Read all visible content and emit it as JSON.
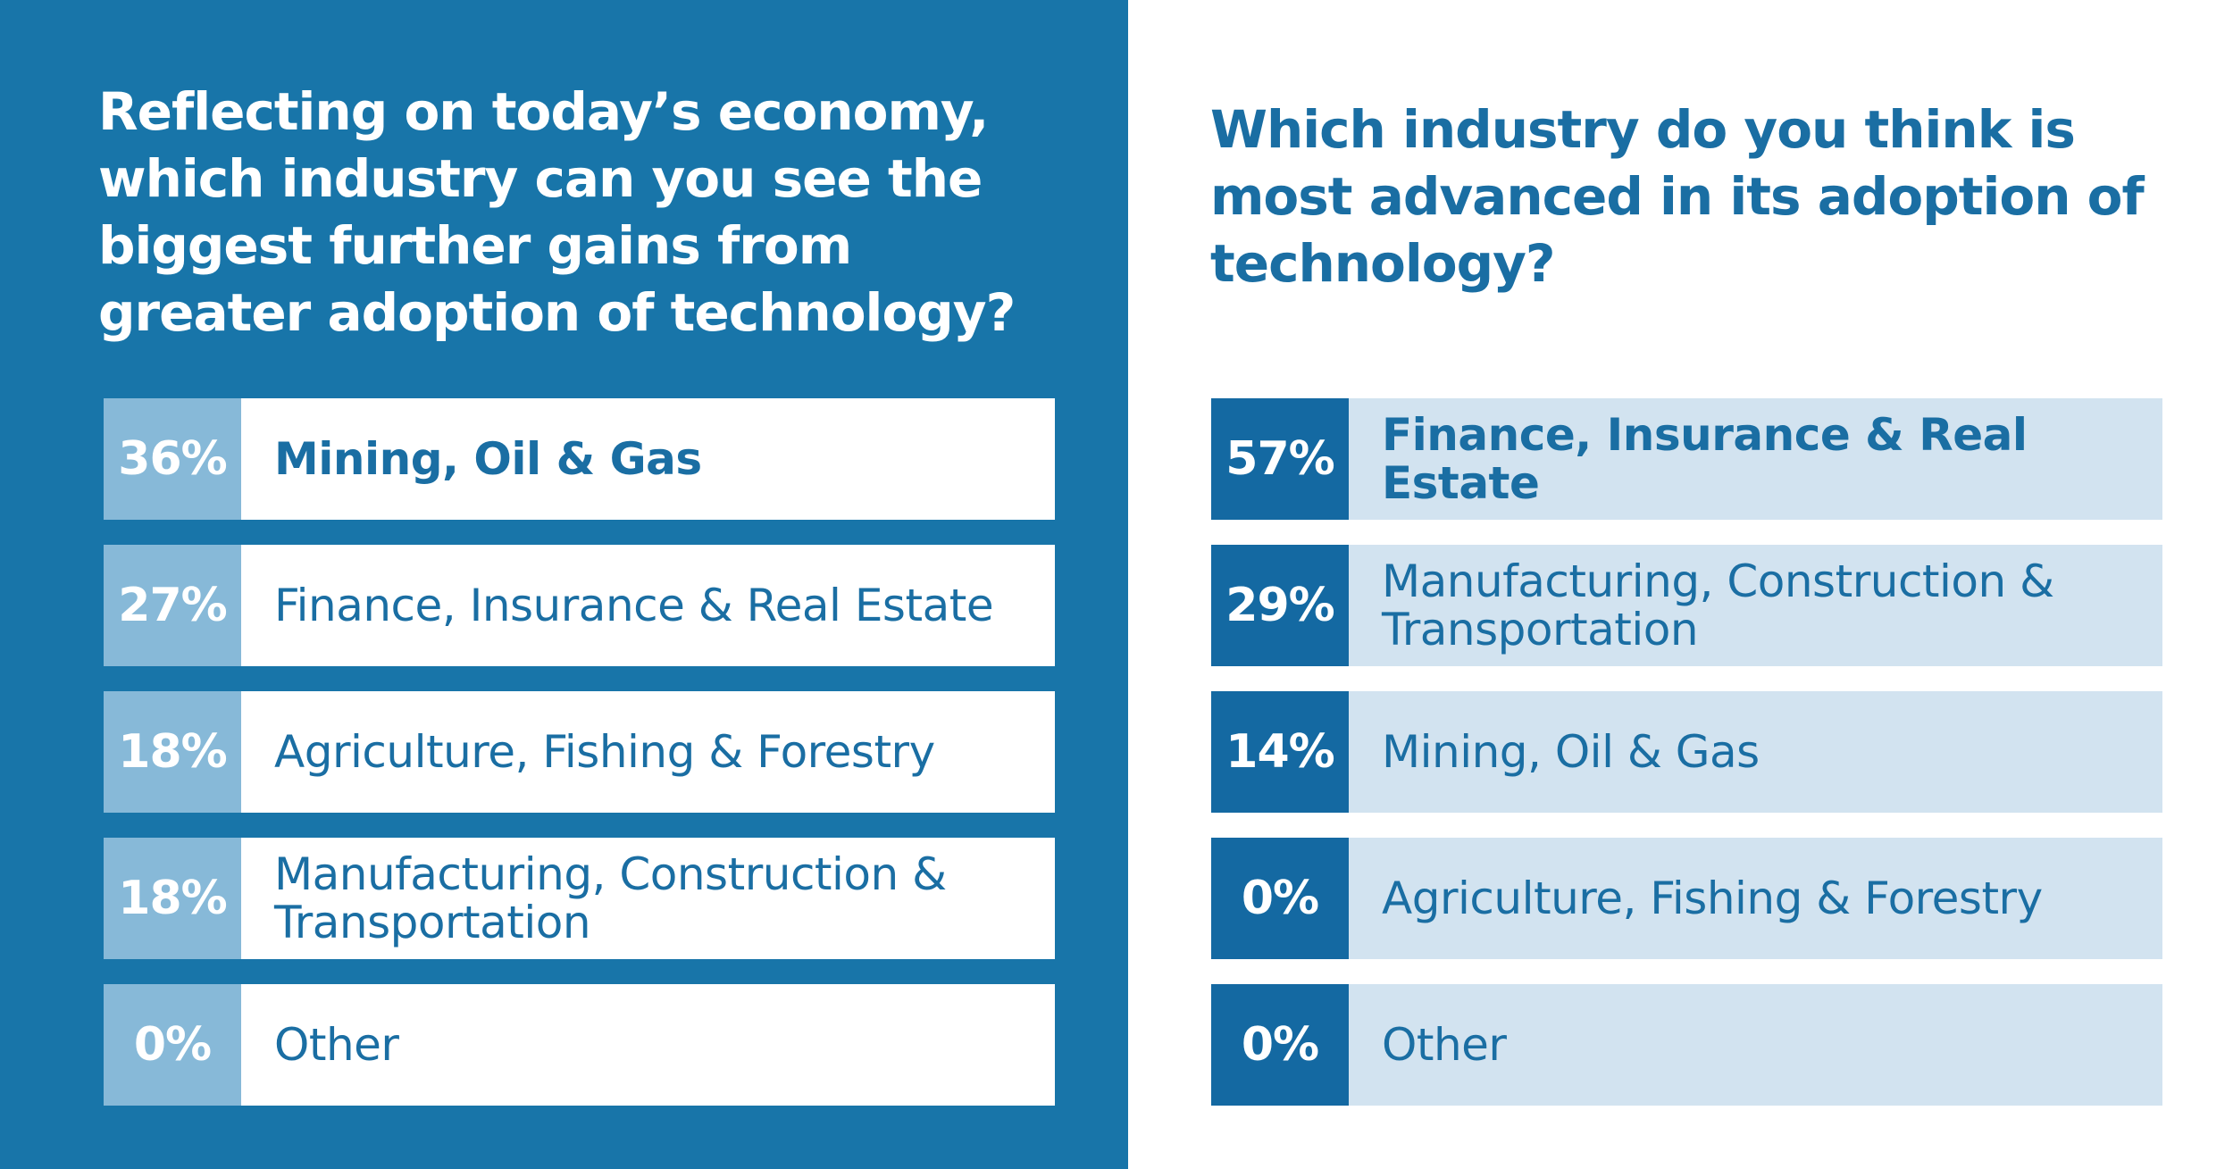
{
  "left_panel": {
    "question": "Reflecting on today’s economy, which industry can you see the biggest further gains from greater adoption of technology?",
    "rows": [
      {
        "percent": "36%",
        "label": "Mining, Oil & Gas",
        "value": 36
      },
      {
        "percent": "27%",
        "label": "Finance, Insurance & Real Estate",
        "value": 27
      },
      {
        "percent": "18%",
        "label": "Agriculture, Fishing & Forestry",
        "value": 18
      },
      {
        "percent": "18%",
        "label": "Manufacturing, Construction & Transportation",
        "value": 18
      },
      {
        "percent": "0%",
        "label": "Other",
        "value": 0
      }
    ]
  },
  "right_panel": {
    "question": "Which industry do you think is most advanced in its adoption of technology?",
    "rows": [
      {
        "percent": "57%",
        "label": "Finance, Insurance & Real Estate",
        "value": 57
      },
      {
        "percent": "29%",
        "label": "Manufacturing, Construction & Transportation",
        "value": 29
      },
      {
        "percent": "14%",
        "label": "Mining, Oil & Gas",
        "value": 14
      },
      {
        "percent": "0%",
        "label": "Agriculture, Fishing & Forestry",
        "value": 0
      },
      {
        "percent": "0%",
        "label": "Other",
        "value": 0
      }
    ]
  },
  "colors": {
    "left_background": "#1875a9",
    "left_percent_box": "#87b9d8",
    "left_label_box": "#ffffff",
    "right_percent_box": "#1469a2",
    "right_label_box": "#d2e3f0",
    "text_blue": "#1a6ea3"
  }
}
